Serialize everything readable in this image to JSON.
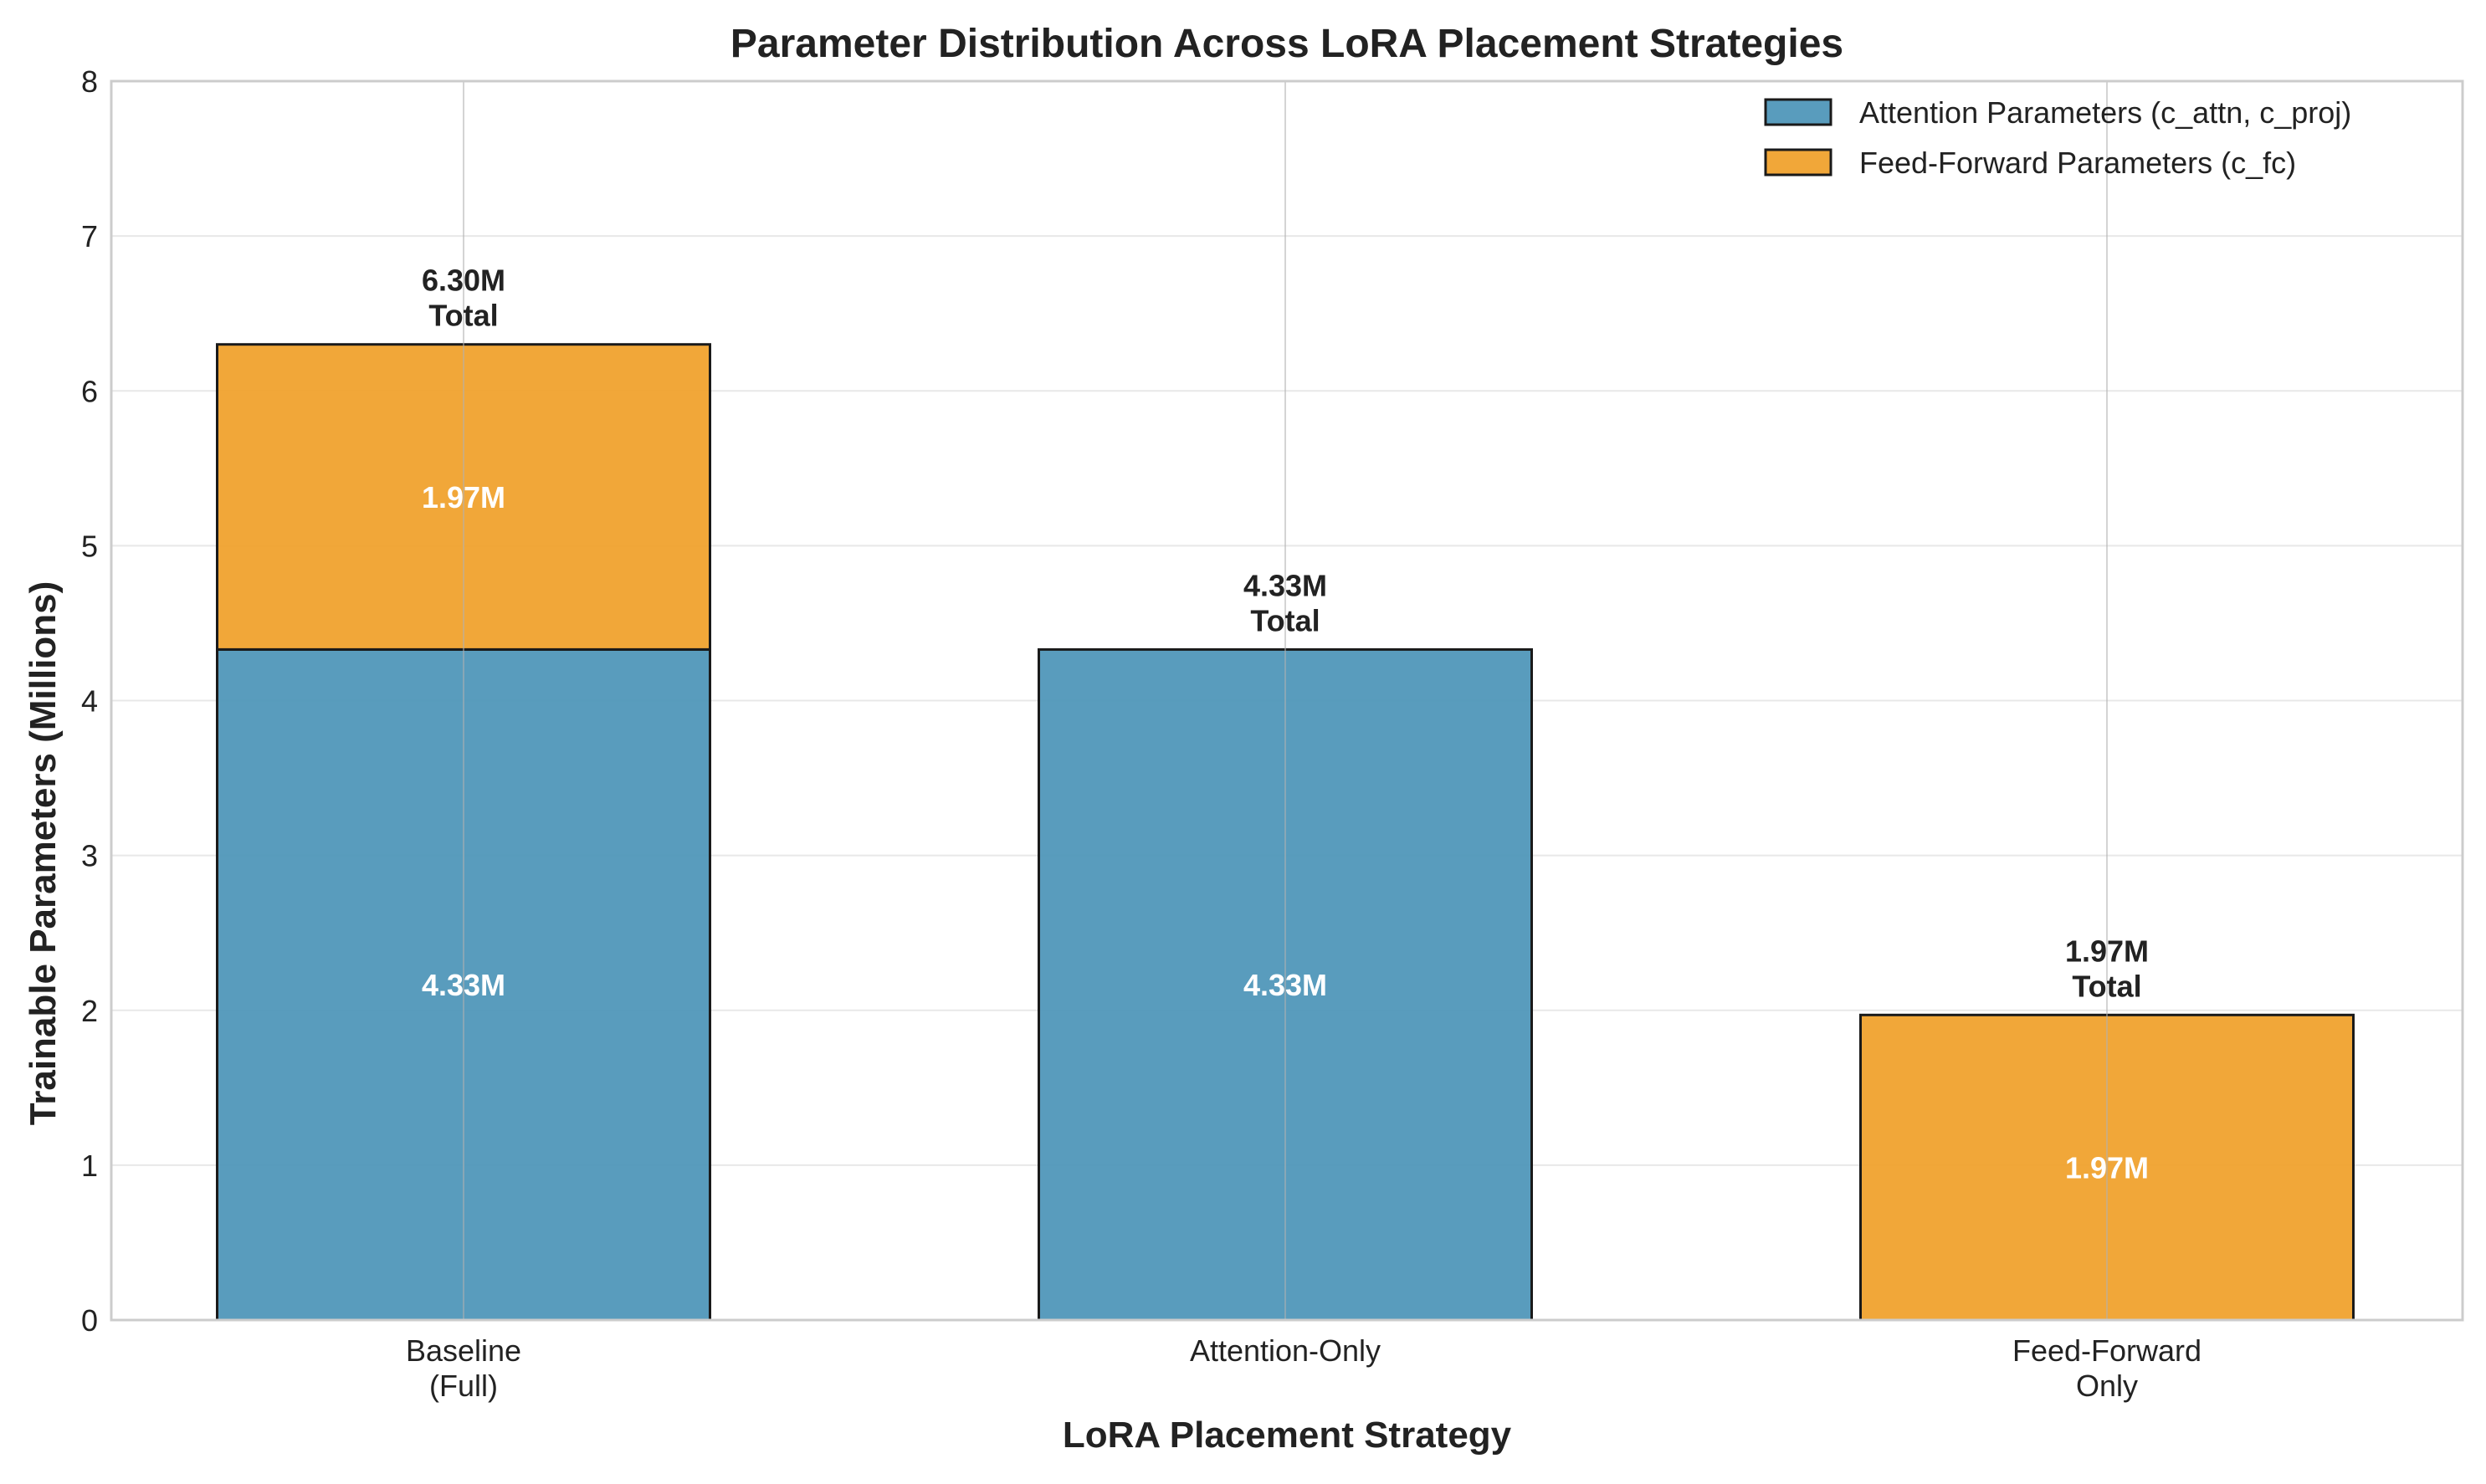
{
  "chart_data": {
    "type": "bar",
    "stacked": true,
    "title": "Parameter Distribution Across LoRA Placement Strategies",
    "xlabel": "LoRA Placement Strategy",
    "ylabel": "Trainable Parameters (Millions)",
    "categories": [
      [
        "Baseline",
        "(Full)"
      ],
      [
        "Attention-Only"
      ],
      [
        "Feed-Forward",
        "Only"
      ]
    ],
    "series": [
      {
        "name": "Attention Parameters (c_attn, c_proj)",
        "color": "#4c94b8",
        "values": [
          4.33,
          4.33,
          0
        ],
        "labels": [
          "4.33M",
          "4.33M",
          ""
        ]
      },
      {
        "name": "Feed-Forward Parameters (c_fc)",
        "color": "#f0a02a",
        "values": [
          1.97,
          0,
          1.97
        ],
        "labels": [
          "1.97M",
          "",
          "1.97M"
        ]
      }
    ],
    "totals": [
      6.3,
      4.33,
      1.97
    ],
    "total_labels": [
      [
        "6.30M",
        "Total"
      ],
      [
        "4.33M",
        "Total"
      ],
      [
        "1.97M",
        "Total"
      ]
    ],
    "ylim": [
      0,
      8
    ],
    "yticks": [
      "0",
      "1",
      "2",
      "3",
      "4",
      "5",
      "6",
      "7",
      "8"
    ],
    "grid": true,
    "legend_position": "top-right"
  }
}
